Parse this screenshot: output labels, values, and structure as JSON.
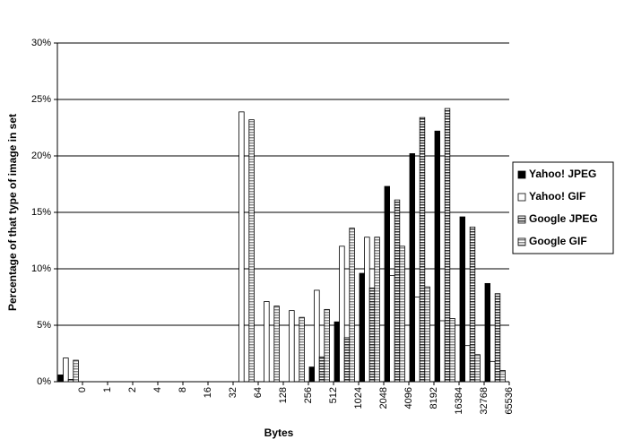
{
  "chart_data": {
    "type": "bar",
    "x_label": "Bytes",
    "y_label": "Percentage of that type of image in set",
    "categories": [
      "0",
      "1",
      "2",
      "4",
      "8",
      "16",
      "32",
      "64",
      "128",
      "256",
      "512",
      "1024",
      "2048",
      "4096",
      "8192",
      "16384",
      "32768",
      "65536"
    ],
    "series": [
      {
        "name": "Yahoo! JPEG",
        "color": "#000000",
        "pattern": "solid",
        "values": [
          0.6,
          0,
          0,
          0,
          0,
          0,
          0,
          0,
          0,
          0,
          1.3,
          5.3,
          9.6,
          17.3,
          20.2,
          22.2,
          14.6,
          8.7
        ]
      },
      {
        "name": "Yahoo! GIF",
        "color": "#ffffff",
        "pattern": "solid",
        "values": [
          2.1,
          0,
          0,
          0,
          0,
          0,
          0,
          23.9,
          7.1,
          6.3,
          8.1,
          12.0,
          12.8,
          9.4,
          7.5,
          5.4,
          3.2,
          1.8
        ]
      },
      {
        "name": "Google JPEG",
        "color": "#333333",
        "pattern": "stripes",
        "values": [
          0.2,
          0,
          0,
          0,
          0,
          0,
          0,
          0,
          0,
          0,
          2.2,
          3.9,
          8.3,
          16.1,
          23.4,
          24.2,
          13.7,
          7.8
        ]
      },
      {
        "name": "Google GIF",
        "color": "#888888",
        "pattern": "stripes",
        "values": [
          1.9,
          0,
          0,
          0,
          0,
          0,
          0,
          23.2,
          6.7,
          5.7,
          6.4,
          13.6,
          12.8,
          12.0,
          8.4,
          5.6,
          2.4,
          1.0
        ]
      }
    ],
    "ylim": [
      0,
      30
    ],
    "yticks": [
      {
        "value": 0,
        "label": "0%"
      },
      {
        "value": 5,
        "label": "5%"
      },
      {
        "value": 10,
        "label": "10%"
      },
      {
        "value": 15,
        "label": "15%"
      },
      {
        "value": 20,
        "label": "20%"
      },
      {
        "value": 25,
        "label": "25%"
      },
      {
        "value": 30,
        "label": "30%"
      }
    ],
    "grid": true,
    "legend": "right"
  }
}
